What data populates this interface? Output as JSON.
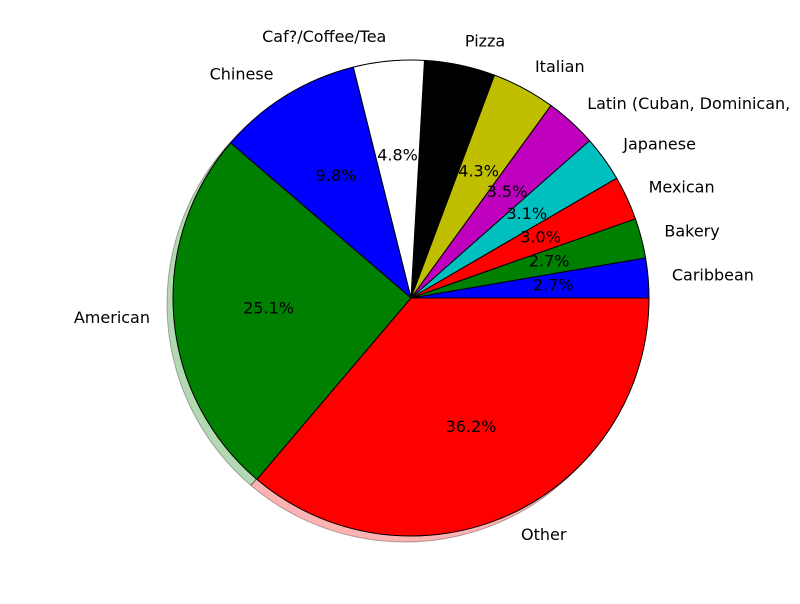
{
  "chart_data": {
    "type": "pie",
    "shadow": true,
    "categories": [
      "Caribbean",
      "Bakery",
      "Mexican",
      "Japanese",
      "Latin (Cuban, Dominican,",
      "Italian",
      "Pizza",
      "Caf?/Coffee/Tea",
      "Chinese",
      "American",
      "Other"
    ],
    "values": [
      2.7,
      2.7,
      3.0,
      3.1,
      3.5,
      4.3,
      4.8,
      4.8,
      9.8,
      25.1,
      36.2
    ],
    "value_labels": [
      "2.7%",
      "2.7%",
      "3.0%",
      "3.1%",
      "3.5%",
      "4.3%",
      "",
      "4.8%",
      "9.8%",
      "25.1%",
      "36.2%"
    ],
    "colors": [
      "#0000ff",
      "#008000",
      "#ff0000",
      "#00bfbf",
      "#bf00bf",
      "#bfbf00",
      "#000000",
      "#ffffff",
      "#0000ff",
      "#008000",
      "#ff0000"
    ],
    "start_angle_deg": 0,
    "direction": "counterclockwise",
    "title": "",
    "legend": "none"
  }
}
